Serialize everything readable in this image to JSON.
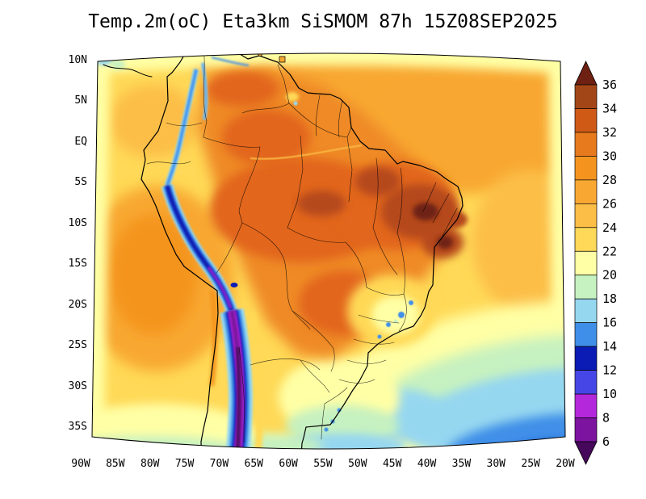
{
  "title": "Temp.2m(oC) Eta3km SiSMOM 87h 15Z08SEP2025",
  "axes": {
    "lat_labels": [
      "10N",
      "5N",
      "EQ",
      "5S",
      "10S",
      "15S",
      "20S",
      "25S",
      "30S",
      "35S"
    ],
    "lon_labels": [
      "90W",
      "85W",
      "80W",
      "75W",
      "70W",
      "65W",
      "60W",
      "55W",
      "50W",
      "45W",
      "40W",
      "35W",
      "30W",
      "25W",
      "20W"
    ]
  },
  "colorbar": {
    "units": "oC",
    "labels_top_to_bottom": [
      "36",
      "34",
      "32",
      "30",
      "28",
      "26",
      "24",
      "22",
      "20",
      "18",
      "16",
      "14",
      "12",
      "10",
      "8",
      "6"
    ],
    "colors_top_to_bottom": [
      "#6e2012",
      "#a34617",
      "#cf5a16",
      "#e87a1e",
      "#f4941e",
      "#f8a832",
      "#fcbe46",
      "#ffd957",
      "#ffffa5",
      "#c6f1c0",
      "#96d7f0",
      "#3f8fe8",
      "#0b1cb4",
      "#4646e6",
      "#b428dc",
      "#7d14a0",
      "#46085a"
    ]
  },
  "chart_data": {
    "type": "heatmap",
    "title": "Temp.2m(oC) Eta3km SiSMOM 87h 15Z08SEP2025",
    "variable": "2-meter air temperature",
    "units": "oC",
    "model": "Eta3km SiSMOM",
    "forecast_hour": "87h",
    "valid_time": "15Z08SEP2025",
    "region": "South America",
    "lat_ticks": [
      "10N",
      "5N",
      "EQ",
      "5S",
      "10S",
      "15S",
      "20S",
      "25S",
      "30S",
      "35S"
    ],
    "lon_ticks": [
      "90W",
      "85W",
      "80W",
      "75W",
      "70W",
      "65W",
      "60W",
      "55W",
      "50W",
      "45W",
      "40W",
      "35W",
      "30W",
      "25W",
      "20W"
    ],
    "contour_levels": [
      6,
      8,
      10,
      12,
      14,
      16,
      18,
      20,
      22,
      24,
      26,
      28,
      30,
      32,
      34,
      36
    ],
    "palette_low_to_high": [
      "#46085a",
      "#7d14a0",
      "#b428dc",
      "#4646e6",
      "#0b1cb4",
      "#3f8fe8",
      "#96d7f0",
      "#c6f1c0",
      "#ffffa5",
      "#ffd957",
      "#fcbe46",
      "#f8a832",
      "#f4941e",
      "#e87a1e",
      "#cf5a16",
      "#a34617",
      "#6e2012"
    ],
    "legend_position": "right vertical colorbar with pointed over/under triangles",
    "field_summary": [
      {
        "area": "Amazon basin and central Brazil",
        "range_oC": "28-32"
      },
      {
        "area": "Northeast Brazil interior hot spots",
        "range_oC": "32-36"
      },
      {
        "area": "Andes cordillera (Colombia to Chile, purple core over Altiplano)",
        "range_oC": "<6-16"
      },
      {
        "area": "Tropical Atlantic northeast of domain",
        "range_oC": "26-28"
      },
      {
        "area": "Tropical Pacific west of Peru",
        "range_oC": "24-28"
      },
      {
        "area": "Southeast Brazil highlands with cool spots",
        "range_oC": "18-26"
      },
      {
        "area": "South Atlantic southeast corner (coldest ocean)",
        "range_oC": "12-20"
      },
      {
        "area": "Southern Brazil / Uruguay / Argentina",
        "range_oC": "16-24"
      },
      {
        "area": "Domain lateral edges",
        "range_oC": "20-24"
      }
    ]
  }
}
